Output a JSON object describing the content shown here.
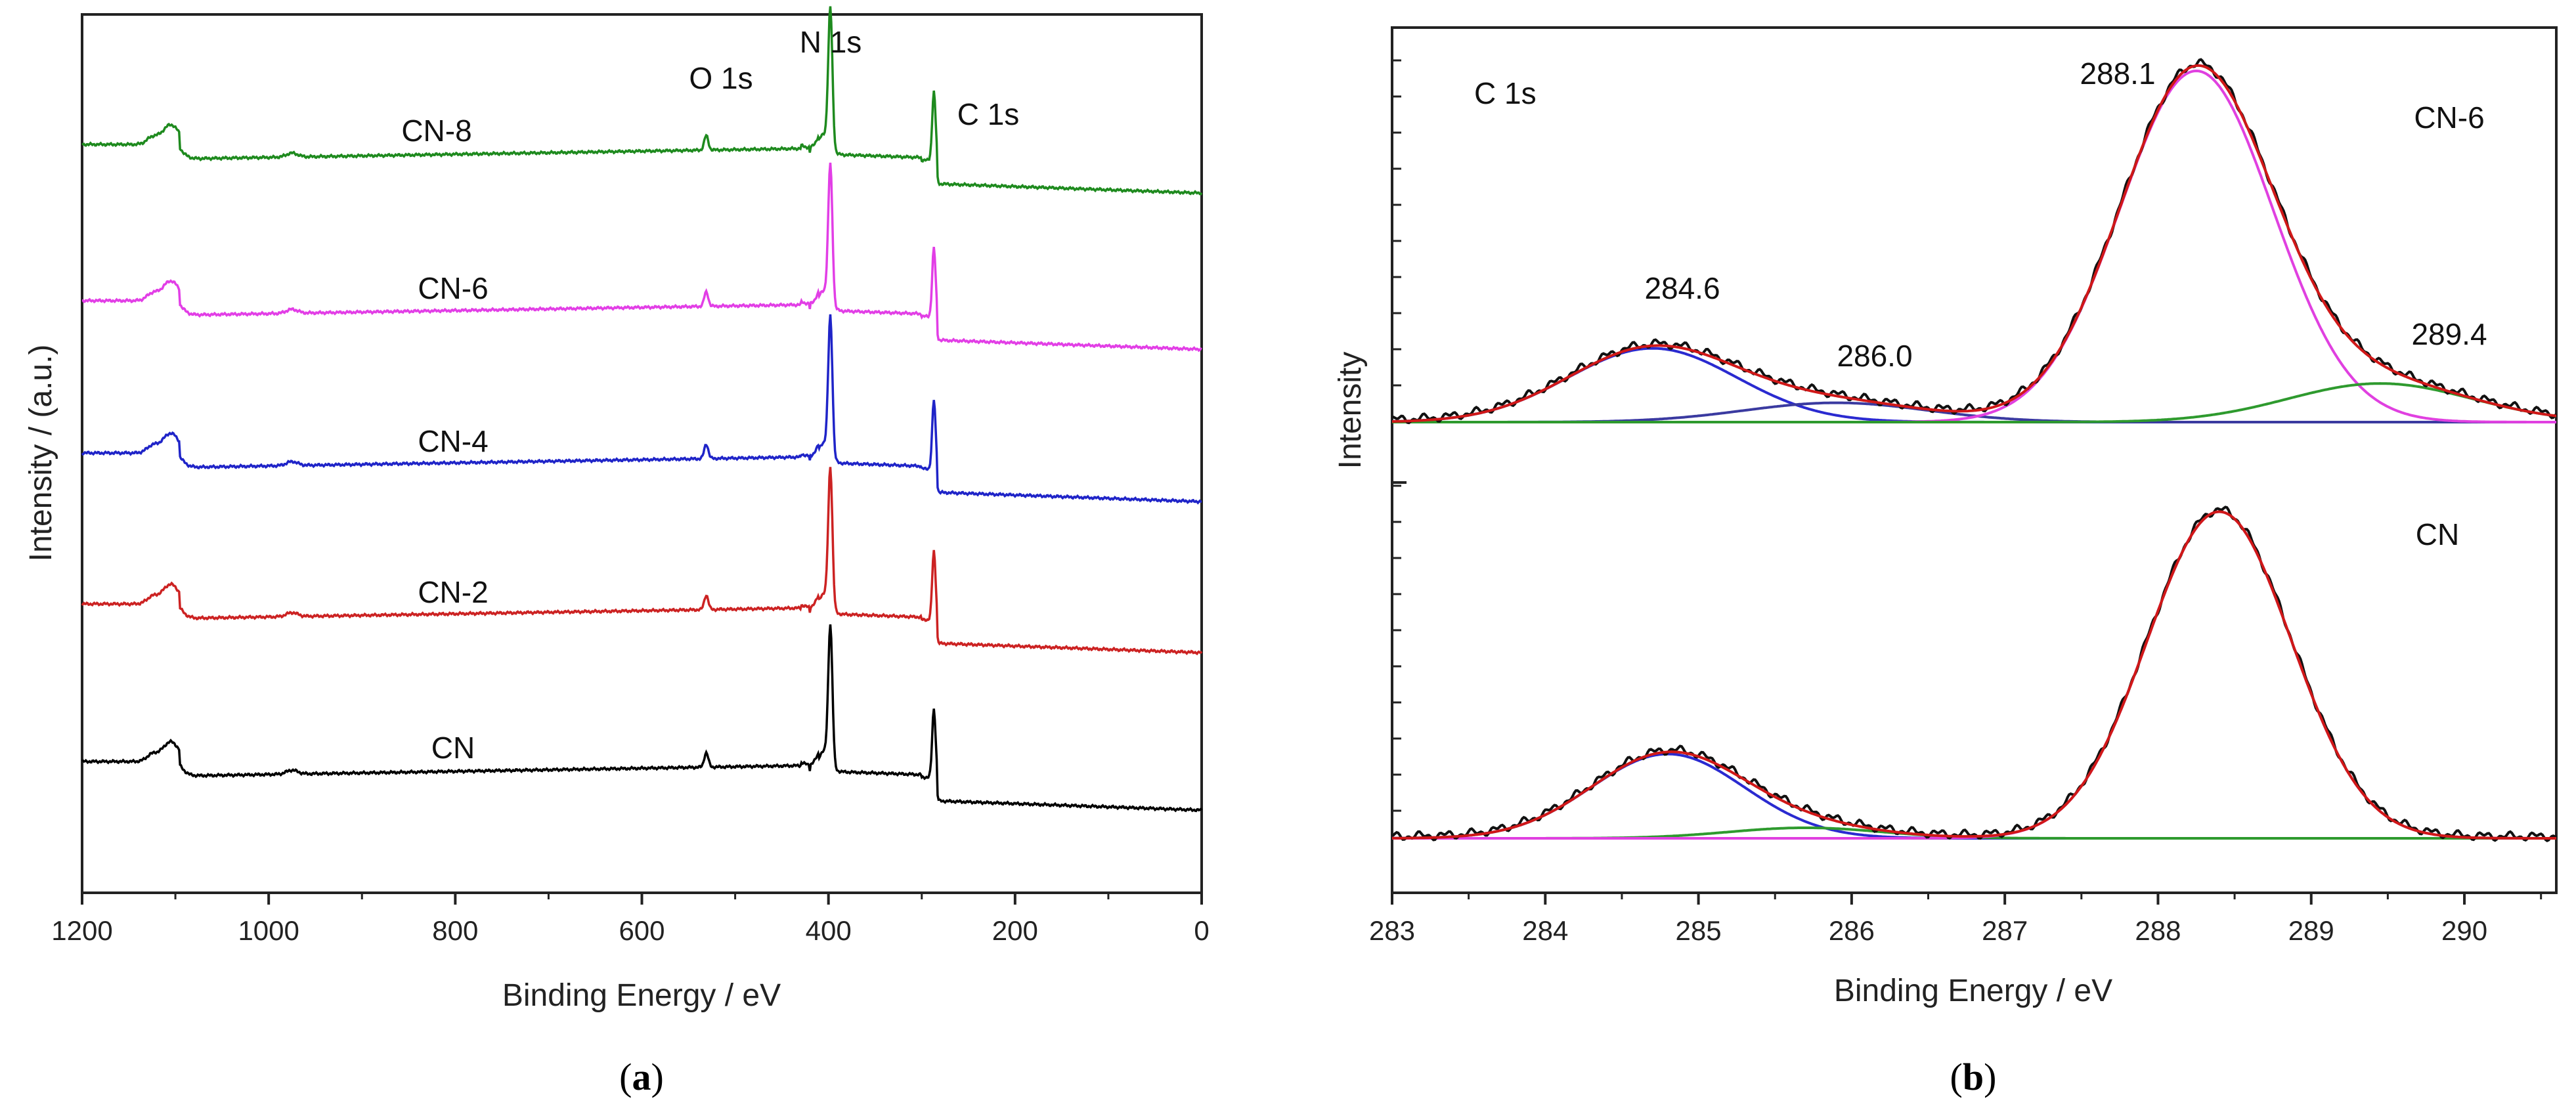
{
  "chart_data": [
    {
      "panel": "a",
      "type": "line",
      "xlabel": "Binding Energy / eV",
      "ylabel": "Intensity / (a.u.)",
      "xlim": [
        1200,
        0
      ],
      "x_reversed": true,
      "xticks": [
        1200,
        1000,
        800,
        600,
        400,
        200,
        0
      ],
      "y_ticks_labeled": false,
      "grid": false,
      "series": [
        {
          "name": "CN",
          "color": "#000000",
          "offset": 0
        },
        {
          "name": "CN-2",
          "color": "#cc2222",
          "offset": 1
        },
        {
          "name": "CN-4",
          "color": "#1f24c8",
          "offset": 2
        },
        {
          "name": "CN-6",
          "color": "#e23ee6",
          "offset": 3
        },
        {
          "name": "CN-8",
          "color": "#1e8a1e",
          "offset": 4
        }
      ],
      "peaks": [
        {
          "label": "O 1s",
          "x": 531
        },
        {
          "label": "N 1s",
          "x": 398
        },
        {
          "label": "C 1s",
          "x": 287
        }
      ]
    },
    {
      "panel": "b",
      "type": "line",
      "title": "C 1s",
      "xlabel": "Binding Energy / eV",
      "ylabel": "Intensity",
      "xlim": [
        283,
        290.6
      ],
      "xticks": [
        283,
        284,
        285,
        286,
        287,
        288,
        289,
        290
      ],
      "y_ticks_labeled": false,
      "grid": false,
      "subplots": [
        {
          "name": "CN-6",
          "peak_labels": [
            "284.6",
            "286.0",
            "288.1",
            "289.4"
          ],
          "components": [
            {
              "color": "#2a2ad0",
              "center": 284.7,
              "height": 0.21,
              "width": 0.55
            },
            {
              "color": "#3a3aa0",
              "center": 285.9,
              "height": 0.055,
              "width": 0.6
            },
            {
              "color": "#e040e0",
              "center": 288.25,
              "height": 1.0,
              "width": 0.5
            },
            {
              "color": "#2e9a2e",
              "center": 289.45,
              "height": 0.11,
              "width": 0.6
            }
          ]
        },
        {
          "name": "CN",
          "peak_labels": [],
          "components": [
            {
              "color": "#2a2ad0",
              "center": 284.8,
              "height": 0.24,
              "width": 0.5
            },
            {
              "color": "#2e9a2e",
              "center": 285.7,
              "height": 0.03,
              "width": 0.5
            },
            {
              "color": "#e040e0",
              "center": 288.4,
              "height": 0.93,
              "width": 0.47
            }
          ]
        }
      ],
      "fit_color": "#d01818",
      "raw_color": "#111111",
      "baseline_color": "#2e9a2e"
    }
  ],
  "panel_labels": {
    "a": "(a)",
    "a_letter": "a",
    "b": "(b)",
    "b_letter": "b"
  }
}
